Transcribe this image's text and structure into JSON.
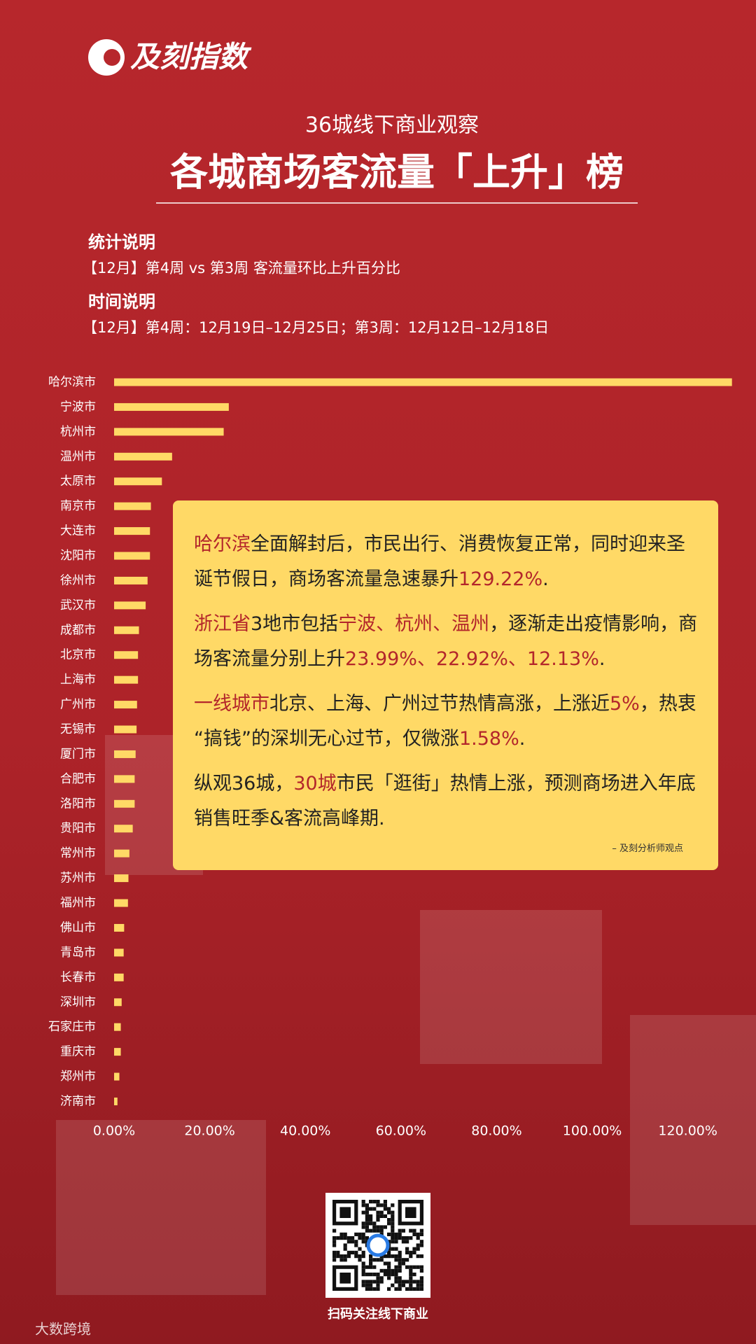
{
  "logo": "及刻指数",
  "header": {
    "subtitle": "36城线下商业观察",
    "title": "各城商场客流量「上升」榜"
  },
  "notes": [
    {
      "heading": "统计说明",
      "text": "【12月】第4周 vs 第3周 客流量环比上升百分比"
    },
    {
      "heading": "时间说明",
      "text": "【12月】第4周：12月19日–12月25日；第3周：12月12日–12月18日"
    }
  ],
  "chart_data": {
    "type": "hbar",
    "categories": [
      "哈尔滨市",
      "宁波市",
      "杭州市",
      "温州市",
      "太原市",
      "南京市",
      "大连市",
      "沈阳市",
      "徐州市",
      "武汉市",
      "成都市",
      "北京市",
      "上海市",
      "广州市",
      "无锡市",
      "厦门市",
      "合肥市",
      "洛阳市",
      "贵阳市",
      "常州市",
      "苏州市",
      "福州市",
      "佛山市",
      "青岛市",
      "长春市",
      "深圳市",
      "石家庄市",
      "重庆市",
      "郑州市",
      "济南市"
    ],
    "values": [
      129.22,
      23.99,
      22.92,
      12.13,
      10,
      7.7,
      7.5,
      7.5,
      7.0,
      6.6,
      5.2,
      5.0,
      5.0,
      4.8,
      4.7,
      4.5,
      4.3,
      4.3,
      3.9,
      3.2,
      3.0,
      2.9,
      2.1,
      2.0,
      2.0,
      1.58,
      1.4,
      1.4,
      1.1,
      0.7
    ],
    "color": "#ffd966",
    "xlim": [
      0,
      130
    ],
    "xticks": [
      {
        "value": 0,
        "label": "0.00%"
      },
      {
        "value": 20,
        "label": "20.00%"
      },
      {
        "value": 40,
        "label": "40.00%"
      },
      {
        "value": 60,
        "label": "60.00%"
      },
      {
        "value": 80,
        "label": "80.00%"
      },
      {
        "value": 100,
        "label": "100.00%"
      },
      {
        "value": 120,
        "label": "120.00%"
      }
    ]
  },
  "callout": {
    "paragraphs": [
      [
        {
          "t": "哈尔滨",
          "em": true
        },
        {
          "t": "全面解封后，市民出行、消费恢复正常，同时迎来圣诞节假日，商场客流量急速暴升"
        },
        {
          "t": "129.22%",
          "em": true
        },
        {
          "t": "."
        }
      ],
      [
        {
          "t": "浙江省",
          "em": true
        },
        {
          "t": "3地市包括"
        },
        {
          "t": "宁波、杭州、温州",
          "em": true
        },
        {
          "t": "，逐渐走出疫情影响，商场客流量分别上升"
        },
        {
          "t": "23.99%、22.92%、12.13%",
          "em": true
        },
        {
          "t": "."
        }
      ],
      [
        {
          "t": "一线城市",
          "em": true
        },
        {
          "t": "北京、上海、广州过节热情高涨，上涨近"
        },
        {
          "t": "5%",
          "em": true
        },
        {
          "t": "，热衷“搞钱”的深圳无心过节，仅微涨"
        },
        {
          "t": "1.58%",
          "em": true
        },
        {
          "t": "."
        }
      ],
      [
        {
          "t": "纵观36城，"
        },
        {
          "t": "30城",
          "em": true
        },
        {
          "t": "市民「逛街」热情上涨，预测商场进入年底销售旺季&客流高峰期."
        }
      ]
    ],
    "signature": "– 及刻分析师观点"
  },
  "qr_caption": "扫码关注线下商业",
  "watermark": "大数跨境"
}
